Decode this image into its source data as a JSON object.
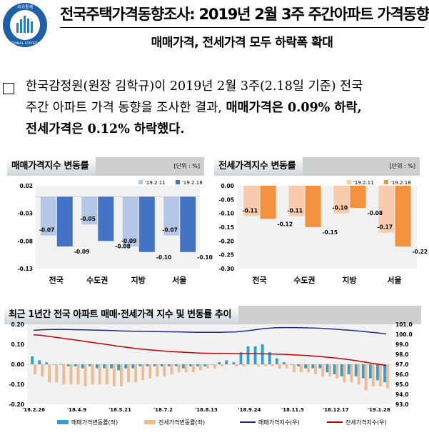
{
  "header": {
    "title": "전국주택가격동향조사: 2019년 2월 3주 주간아파트 가격동향",
    "subtitle": "매매가격, 전세가격 모두 하락폭 확대",
    "logo_text_top": "국가통계",
    "logo_text_bottom": "NATIONAL STATISTICS"
  },
  "summary": {
    "line1": "한국감정원(원장 김학규)이 2019년 2월 3주(2.18일 기준) 전국",
    "line2_a": "주간 아파트 가격 동향을 조사한 결과, ",
    "line2_b": "매매가격은 0.09% 하락,",
    "line3": "전세가격은 0.12% 하락했다."
  },
  "panels": {
    "sale": {
      "title": "매매가격지수 변동률",
      "unit": "[단위 : %]"
    },
    "jeonse": {
      "title": "전세가격지수 변동률",
      "unit": "[단위 : %]"
    },
    "trend": {
      "title": "최근 1년간 전국 아파트 매매·전세가격 지수 및 변동률 추이"
    }
  },
  "colors": {
    "sale_prev": "#b4c7e7",
    "sale_curr": "#4472c4",
    "jeonse_prev": "#f8cbad",
    "jeonse_curr": "#f4913f",
    "trend_sale_bar": "#2e9fd0",
    "trend_jeonse_bar": "#f0b98e",
    "trend_sale_line": "#1f2a8c",
    "trend_jeonse_line": "#c00000"
  },
  "chart_data": [
    {
      "id": "sale",
      "type": "bar",
      "categories": [
        "전국",
        "수도권",
        "지방",
        "서울"
      ],
      "series": [
        {
          "name": "'19.2.11",
          "values": [
            -0.07,
            -0.05,
            -0.09,
            -0.07
          ]
        },
        {
          "name": "'19.2.18",
          "values": [
            -0.09,
            -0.08,
            -0.1,
            -0.1
          ]
        }
      ],
      "ylim": [
        -0.13,
        0.02
      ],
      "yticks": [
        "0.02",
        "-0.03",
        "-0.08",
        "-0.13"
      ],
      "data_labels": [
        [
          "-0.07",
          "-0.05",
          "-0.09",
          "-0.07"
        ],
        [
          "-0.09",
          "-0.08",
          "-0.10",
          "-0.10"
        ]
      ]
    },
    {
      "id": "jeonse",
      "type": "bar",
      "categories": [
        "전국",
        "수도권",
        "지방",
        "서울"
      ],
      "series": [
        {
          "name": "'19.2.11",
          "values": [
            -0.11,
            -0.11,
            -0.1,
            -0.17
          ]
        },
        {
          "name": "'19.2.18",
          "values": [
            -0.12,
            -0.15,
            -0.08,
            -0.22
          ]
        }
      ],
      "ylim": [
        -0.3,
        0.0
      ],
      "yticks": [
        "0.00",
        "-0.05",
        "-0.10",
        "-0.15",
        "-0.20",
        "-0.25",
        "-0.30"
      ],
      "data_labels": [
        [
          "-0.11",
          "-0.11",
          "-0.10",
          "-0.17"
        ],
        [
          "-0.12",
          "-0.15",
          "-0.08",
          "-0.22"
        ]
      ]
    },
    {
      "id": "trend",
      "type": "bar",
      "x_labels": [
        "'18.2.26",
        "'18.4.9",
        "'18.5.21",
        "'18.7.2",
        "'18.8.13",
        "'18.9.24",
        "'18.11.5",
        "'18.12.17",
        "'19.1.28"
      ],
      "y_left": {
        "ylim": [
          -0.2,
          0.2
        ],
        "ticks": [
          "0.20",
          "0.10",
          "0.00",
          "-0.10",
          "-0.20"
        ]
      },
      "y_right": {
        "ylim": [
          93.0,
          101.0
        ],
        "ticks": [
          "101.0",
          "100.0",
          "99.0",
          "98.0",
          "97.0",
          "96.0",
          "95.0",
          "94.0",
          "93.0"
        ]
      },
      "series": [
        {
          "name": "매매가격변동률(좌)",
          "type": "bar",
          "axis": "left",
          "values": [
            0.04,
            0.02,
            0.01,
            0.0,
            0.0,
            -0.01,
            -0.01,
            -0.02,
            -0.01,
            -0.02,
            -0.02,
            -0.02,
            -0.03,
            -0.02,
            -0.02,
            -0.01,
            -0.01,
            -0.01,
            -0.01,
            -0.01,
            -0.01,
            -0.02,
            -0.01,
            -0.01,
            -0.01,
            0.0,
            0.01,
            0.02,
            0.01,
            0.06,
            0.09,
            0.09,
            0.1,
            0.06,
            0.03,
            0.01,
            0.0,
            -0.01,
            -0.02,
            -0.02,
            -0.02,
            -0.04,
            -0.05,
            -0.06,
            -0.05,
            -0.06,
            -0.07,
            -0.07,
            -0.08,
            -0.09
          ]
        },
        {
          "name": "전세가격변동률(좌)",
          "type": "bar",
          "axis": "left",
          "values": [
            -0.05,
            -0.06,
            -0.09,
            -0.09,
            -0.1,
            -0.1,
            -0.1,
            -0.11,
            -0.1,
            -0.1,
            -0.1,
            -0.11,
            -0.11,
            -0.09,
            -0.09,
            -0.08,
            -0.07,
            -0.06,
            -0.06,
            -0.05,
            -0.04,
            -0.04,
            -0.04,
            -0.03,
            -0.02,
            -0.02,
            -0.01,
            0.0,
            -0.01,
            -0.01,
            0.0,
            -0.01,
            -0.01,
            -0.01,
            -0.02,
            -0.02,
            -0.04,
            -0.04,
            -0.04,
            -0.05,
            -0.06,
            -0.06,
            -0.07,
            -0.09,
            -0.09,
            -0.1,
            -0.13,
            -0.11,
            -0.11,
            -0.12
          ]
        },
        {
          "name": "매매가격지수(우)",
          "type": "line",
          "axis": "right",
          "values": [
            100.4,
            100.45,
            100.47,
            100.48,
            100.48,
            100.47,
            100.46,
            100.44,
            100.43,
            100.41,
            100.39,
            100.37,
            100.34,
            100.32,
            100.3,
            100.29,
            100.28,
            100.27,
            100.26,
            100.25,
            100.24,
            100.22,
            100.21,
            100.2,
            100.19,
            100.19,
            100.2,
            100.22,
            100.23,
            100.29,
            100.38,
            100.47,
            100.57,
            100.63,
            100.66,
            100.67,
            100.67,
            100.66,
            100.64,
            100.62,
            100.6,
            100.56,
            100.51,
            100.45,
            100.4,
            100.34,
            100.27,
            100.2,
            100.12,
            100.03
          ]
        },
        {
          "name": "전세가격지수(우)",
          "type": "line",
          "axis": "right",
          "values": [
            99.95,
            99.9,
            99.8,
            99.71,
            99.61,
            99.51,
            99.41,
            99.3,
            99.2,
            99.1,
            99.0,
            98.89,
            98.78,
            98.69,
            98.6,
            98.52,
            98.45,
            98.39,
            98.33,
            98.28,
            98.24,
            98.2,
            98.16,
            98.13,
            98.11,
            98.09,
            98.08,
            98.08,
            98.07,
            98.06,
            98.06,
            98.05,
            98.04,
            98.03,
            98.01,
            97.99,
            97.95,
            97.91,
            97.87,
            97.82,
            97.76,
            97.7,
            97.63,
            97.54,
            97.45,
            97.35,
            97.22,
            97.11,
            97.0,
            96.88
          ]
        }
      ]
    }
  ]
}
